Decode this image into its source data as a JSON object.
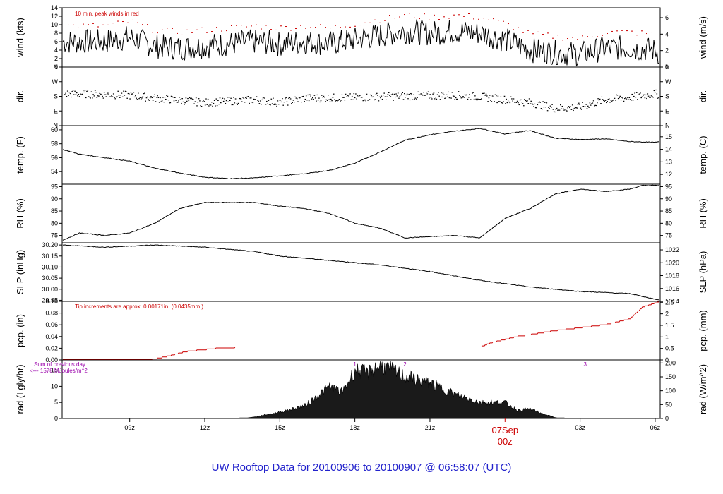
{
  "title": "UW Rooftop Data for 20100906  to  20100907 @ 06:58:07  (UTC)",
  "date_marker": {
    "date": "07Sep",
    "hour": "00z"
  },
  "colors": {
    "peak": "#cc0000",
    "pcp": "#cc0000",
    "sum": "#9900aa",
    "title": "#2222cc",
    "trace": "#000000"
  },
  "chart_data": {
    "type": "line",
    "x_range_hours": [
      6.3,
      30.2
    ],
    "x_ticks": [
      {
        "h": 9,
        "label": "09z"
      },
      {
        "h": 12,
        "label": "12z"
      },
      {
        "h": 15,
        "label": "15z"
      },
      {
        "h": 18,
        "label": "18z"
      },
      {
        "h": 21,
        "label": "21z"
      },
      {
        "h": 27,
        "label": "03z"
      },
      {
        "h": 30,
        "label": "06z"
      }
    ],
    "panels": [
      {
        "id": "wind",
        "kind": "wind",
        "left_label": "wind (kts)",
        "right_label": "wind (m/s)",
        "left_range": [
          0,
          14
        ],
        "right_range": [
          0,
          7.2
        ],
        "left_ticks": [
          "0",
          "2",
          "4",
          "6",
          "8",
          "10",
          "12",
          "14"
        ],
        "right_ticks": [
          {
            "v": 0,
            "t": "0"
          },
          {
            "v": 2,
            "t": "2"
          },
          {
            "v": 4,
            "t": "4"
          },
          {
            "v": 6,
            "t": "6"
          }
        ],
        "note": "10 min. peak winds in red",
        "mean": [
          [
            6.3,
            6
          ],
          [
            8,
            6
          ],
          [
            9,
            7
          ],
          [
            10,
            5
          ],
          [
            11,
            4.5
          ],
          [
            12,
            5
          ],
          [
            13,
            5.5
          ],
          [
            14,
            6
          ],
          [
            15,
            5.5
          ],
          [
            16,
            6
          ],
          [
            17,
            5.5
          ],
          [
            18,
            6.5
          ],
          [
            19,
            7.5
          ],
          [
            20,
            8.5
          ],
          [
            21,
            8
          ],
          [
            22,
            8.5
          ],
          [
            23,
            8
          ],
          [
            24,
            6.5
          ],
          [
            25,
            4
          ],
          [
            26,
            3.5
          ],
          [
            27,
            3
          ],
          [
            28,
            4.5
          ],
          [
            29,
            4.5
          ],
          [
            30,
            4
          ],
          [
            30.2,
            3
          ]
        ],
        "peak_offset": 3.5
      },
      {
        "id": "dir",
        "kind": "dir",
        "left_label": "dir.",
        "right_label": "dir.",
        "left_range": [
          0,
          4
        ],
        "right_range": [
          0,
          4
        ],
        "left_ticks": [
          "N",
          "E",
          "S",
          "W",
          "N"
        ],
        "right_ticks": [
          {
            "v": 0,
            "t": "N"
          },
          {
            "v": 1,
            "t": "E"
          },
          {
            "v": 2,
            "t": "S"
          },
          {
            "v": 3,
            "t": "W"
          },
          {
            "v": 4,
            "t": "N"
          }
        ],
        "series": [
          [
            6.3,
            2.2
          ],
          [
            7,
            2.2
          ],
          [
            9,
            2.1
          ],
          [
            10,
            1.9
          ],
          [
            12,
            1.6
          ],
          [
            14,
            1.8
          ],
          [
            15,
            1.6
          ],
          [
            16,
            1.9
          ],
          [
            18,
            1.95
          ],
          [
            20,
            2.05
          ],
          [
            22,
            2.1
          ],
          [
            23,
            2.0
          ],
          [
            24,
            1.8
          ],
          [
            25,
            1.6
          ],
          [
            26,
            1.2
          ],
          [
            27,
            1.3
          ],
          [
            28,
            1.8
          ],
          [
            29,
            1.95
          ],
          [
            30,
            2.2
          ],
          [
            30.2,
            2.1
          ]
        ]
      },
      {
        "id": "temp",
        "kind": "line",
        "left_label": "temp. (F)",
        "right_label": "temp. (C)",
        "left_range": [
          52.2,
          60.6
        ],
        "right_range": [
          11.22,
          15.89
        ],
        "left_ticks": [
          "54",
          "56",
          "58",
          "60"
        ],
        "right_ticks": [
          {
            "v": 12,
            "t": "12"
          },
          {
            "v": 13,
            "t": "13"
          },
          {
            "v": 14,
            "t": "14"
          },
          {
            "v": 15,
            "t": "15"
          }
        ],
        "series": [
          [
            6.3,
            57.2
          ],
          [
            7,
            56.5
          ],
          [
            8,
            56
          ],
          [
            9,
            55.5
          ],
          [
            10,
            54.5
          ],
          [
            11,
            53.8
          ],
          [
            12,
            53.2
          ],
          [
            13,
            53
          ],
          [
            14,
            53.1
          ],
          [
            15,
            53.4
          ],
          [
            16,
            53.7
          ],
          [
            17,
            54.2
          ],
          [
            18,
            55.2
          ],
          [
            19,
            56.8
          ],
          [
            20,
            58.5
          ],
          [
            21,
            59.3
          ],
          [
            22,
            59.8
          ],
          [
            23,
            60.2
          ],
          [
            24,
            59.4
          ],
          [
            25,
            59.9
          ],
          [
            26,
            58.8
          ],
          [
            27,
            58.6
          ],
          [
            28,
            58.7
          ],
          [
            29,
            58.3
          ],
          [
            30,
            58.2
          ],
          [
            30.2,
            58.3
          ]
        ]
      },
      {
        "id": "rh",
        "kind": "line",
        "left_label": "RH (%)",
        "right_label": "RH (%)",
        "left_range": [
          72,
          96
        ],
        "right_range": [
          72,
          96
        ],
        "left_ticks": [
          "75",
          "80",
          "85",
          "90",
          "95"
        ],
        "right_ticks": [
          {
            "v": 75,
            "t": "75"
          },
          {
            "v": 80,
            "t": "80"
          },
          {
            "v": 85,
            "t": "85"
          },
          {
            "v": 90,
            "t": "90"
          },
          {
            "v": 95,
            "t": "95"
          }
        ],
        "series": [
          [
            6.3,
            73
          ],
          [
            7,
            76
          ],
          [
            8,
            75
          ],
          [
            9,
            76
          ],
          [
            10,
            80
          ],
          [
            11,
            86
          ],
          [
            12,
            88.5
          ],
          [
            13,
            88.5
          ],
          [
            14,
            88.5
          ],
          [
            15,
            87
          ],
          [
            16,
            86
          ],
          [
            17,
            84
          ],
          [
            18,
            80
          ],
          [
            19,
            78
          ],
          [
            20,
            74
          ],
          [
            21,
            74.5
          ],
          [
            22,
            75
          ],
          [
            23,
            74
          ],
          [
            24,
            82
          ],
          [
            25,
            86
          ],
          [
            26,
            92
          ],
          [
            27,
            94
          ],
          [
            28,
            93
          ],
          [
            29,
            94
          ],
          [
            29.5,
            95.5
          ],
          [
            30,
            95.5
          ],
          [
            30.2,
            95.5
          ]
        ]
      },
      {
        "id": "slp",
        "kind": "line",
        "left_label": "SLP (inHg)",
        "right_label": "SLP (hPa)",
        "left_range": [
          29.945,
          30.21
        ],
        "right_range": [
          1014.0,
          1023.1
        ],
        "left_ticks": [
          "29.95",
          "30.00",
          "30.05",
          "30.10",
          "30.15",
          "30.20"
        ],
        "right_ticks": [
          {
            "v": 1014,
            "t": "1014"
          },
          {
            "v": 1016,
            "t": "1016"
          },
          {
            "v": 1018,
            "t": "1018"
          },
          {
            "v": 1020,
            "t": "1020"
          },
          {
            "v": 1022,
            "t": "1022"
          }
        ],
        "series": [
          [
            6.3,
            30.2
          ],
          [
            8,
            30.19
          ],
          [
            10,
            30.2
          ],
          [
            12,
            30.19
          ],
          [
            14,
            30.17
          ],
          [
            15,
            30.15
          ],
          [
            17,
            30.13
          ],
          [
            19,
            30.11
          ],
          [
            21,
            30.08
          ],
          [
            23,
            30.04
          ],
          [
            25,
            30.01
          ],
          [
            27,
            29.99
          ],
          [
            29,
            29.98
          ],
          [
            30.2,
            29.95
          ]
        ]
      },
      {
        "id": "pcp",
        "kind": "step",
        "left_label": "pcp. (in)",
        "right_label": "pcp. (mm)",
        "left_range": [
          0,
          0.1
        ],
        "right_range": [
          0,
          2.54
        ],
        "left_ticks": [
          "0.00",
          "0.02",
          "0.04",
          "0.06",
          "0.08",
          "0.10"
        ],
        "right_ticks": [
          {
            "v": 0,
            "t": "0"
          },
          {
            "v": 0.5,
            "t": "0.5"
          },
          {
            "v": 1,
            "t": "1"
          },
          {
            "v": 1.5,
            "t": "1.5"
          },
          {
            "v": 2,
            "t": "2"
          },
          {
            "v": 2.5,
            "t": "2.5"
          }
        ],
        "note": "Tip increments are approx. 0.00171in. (0.0435mm.)",
        "series": [
          [
            6.3,
            0
          ],
          [
            9.8,
            0
          ],
          [
            10.5,
            0.006
          ],
          [
            11.2,
            0.014
          ],
          [
            12.5,
            0.02
          ],
          [
            13.5,
            0.022
          ],
          [
            23,
            0.022
          ],
          [
            23.5,
            0.03
          ],
          [
            24.5,
            0.04
          ],
          [
            26,
            0.05
          ],
          [
            28,
            0.06
          ],
          [
            29,
            0.07
          ],
          [
            29.5,
            0.09
          ],
          [
            30.2,
            0.1
          ]
        ]
      },
      {
        "id": "rad",
        "kind": "area",
        "left_label": "rad (Lgly/hr)",
        "right_label": "rad (W/m^2)",
        "left_range": [
          0,
          18.2
        ],
        "right_range": [
          0,
          211
        ],
        "left_ticks": [
          "0",
          "5",
          "10",
          "15"
        ],
        "right_ticks": [
          {
            "v": 0,
            "t": "0"
          },
          {
            "v": 50,
            "t": "50"
          },
          {
            "v": 100,
            "t": "100"
          },
          {
            "v": 150,
            "t": "150"
          },
          {
            "v": 200,
            "t": "200"
          }
        ],
        "annotation_lines": [
          "Sum of previous day",
          "<--- 1578 MJoules/m^2"
        ],
        "markers": [
          {
            "h": 18,
            "label": "1"
          },
          {
            "h": 20,
            "label": "2"
          },
          {
            "h": 27.2,
            "label": "3"
          }
        ],
        "series": [
          [
            6.3,
            0
          ],
          [
            13.5,
            0
          ],
          [
            14,
            0.5
          ],
          [
            15,
            2
          ],
          [
            15.5,
            3
          ],
          [
            16,
            4
          ],
          [
            16.5,
            7
          ],
          [
            17,
            10
          ],
          [
            17.5,
            8
          ],
          [
            18,
            15
          ],
          [
            18.5,
            14
          ],
          [
            19,
            16.5
          ],
          [
            19.5,
            15
          ],
          [
            20,
            13
          ],
          [
            20.5,
            12
          ],
          [
            21,
            11
          ],
          [
            22,
            7.5
          ],
          [
            23,
            5
          ],
          [
            24,
            5
          ],
          [
            24.5,
            2.5
          ],
          [
            25,
            3
          ],
          [
            25.5,
            1.5
          ],
          [
            26,
            0.3
          ],
          [
            26.4,
            0
          ],
          [
            30.2,
            0
          ]
        ]
      }
    ]
  }
}
